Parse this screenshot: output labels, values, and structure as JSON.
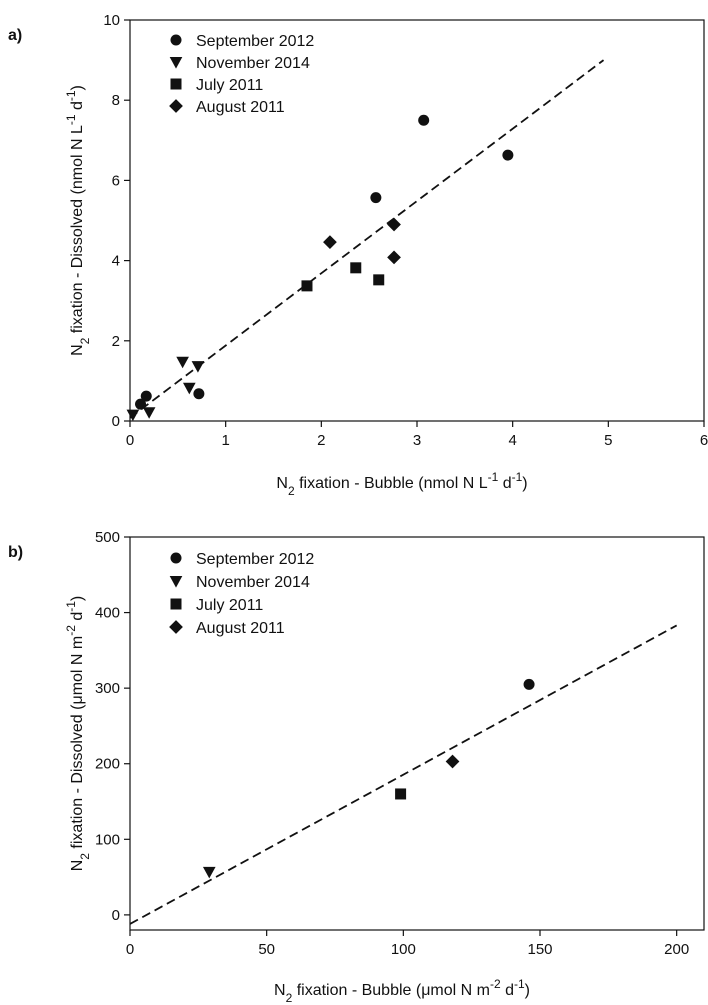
{
  "chart_data": [
    {
      "type": "scatter",
      "panel_label": "a)",
      "xlabel": "N2 fixation - Bubble (nmol N L-1 d-1)",
      "ylabel": "N2 fixation - Dissolved (nmol N L-1 d-1)",
      "xlabel_parts": {
        "pre": "N",
        "sub": "2",
        "mid": " fixation - Bubble (nmol N L",
        "sup1": "-1",
        "mid2": " d",
        "sup2": "-1",
        "post": ")"
      },
      "ylabel_parts": {
        "pre": "N",
        "sub": "2",
        "mid": " fixation - Dissolved (nmol N L",
        "sup1": "-1",
        "mid2": " d",
        "sup2": "-1",
        "post": ")"
      },
      "xlim": [
        0,
        6
      ],
      "ylim": [
        0,
        10
      ],
      "xticks": [
        0,
        1,
        2,
        3,
        4,
        5,
        6
      ],
      "yticks": [
        0,
        2,
        4,
        6,
        8,
        10
      ],
      "legend_position": "top-left",
      "grid": false,
      "series": [
        {
          "name": "September 2012",
          "marker": "circle",
          "x": [
            0.11,
            0.17,
            0.72,
            2.57,
            3.07,
            3.95
          ],
          "y": [
            0.42,
            0.62,
            0.68,
            5.57,
            7.5,
            6.63
          ]
        },
        {
          "name": "November 2014",
          "marker": "triangle-down",
          "x": [
            0.03,
            0.2,
            0.55,
            0.62,
            0.71
          ],
          "y": [
            0.16,
            0.22,
            1.48,
            0.83,
            1.37
          ]
        },
        {
          "name": "July 2011",
          "marker": "square",
          "x": [
            1.85,
            2.36,
            2.6
          ],
          "y": [
            3.37,
            3.82,
            3.52
          ]
        },
        {
          "name": "August 2011",
          "marker": "diamond",
          "x": [
            2.09,
            2.76,
            2.76
          ],
          "y": [
            4.46,
            4.9,
            4.08
          ]
        }
      ],
      "fit_line": {
        "style": "dashed",
        "x": [
          0,
          4.95
        ],
        "y": [
          0.08,
          9.0
        ]
      }
    },
    {
      "type": "scatter",
      "panel_label": "b)",
      "xlabel": "N2 fixation - Bubble (μmol N m-2 d-1)",
      "ylabel": "N2 fixation - Dissolved (μmol N m-2 d-1)",
      "xlabel_parts": {
        "pre": "N",
        "sub": "2",
        "mid": " fixation - Bubble (μmol N m",
        "sup1": "-2",
        "mid2": " d",
        "sup2": "-1",
        "post": ")"
      },
      "ylabel_parts": {
        "pre": "N",
        "sub": "2",
        "mid": " fixation - Dissolved (μmol N m",
        "sup1": "-2",
        "mid2": " d",
        "sup2": "-1",
        "post": ")"
      },
      "xlim": [
        0,
        210
      ],
      "ylim": [
        -20,
        500
      ],
      "xticks": [
        0,
        50,
        100,
        150,
        200
      ],
      "yticks": [
        0,
        100,
        200,
        300,
        400,
        500
      ],
      "legend_position": "top-left",
      "grid": false,
      "series": [
        {
          "name": "September 2012",
          "marker": "circle",
          "x": [
            146
          ],
          "y": [
            305
          ]
        },
        {
          "name": "November 2014",
          "marker": "triangle-down",
          "x": [
            29
          ],
          "y": [
            57
          ]
        },
        {
          "name": "July 2011",
          "marker": "square",
          "x": [
            99
          ],
          "y": [
            160
          ]
        },
        {
          "name": "August 2011",
          "marker": "diamond",
          "x": [
            118
          ],
          "y": [
            203
          ]
        }
      ],
      "fit_line": {
        "style": "dashed",
        "x": [
          0,
          200
        ],
        "y": [
          -12,
          383
        ]
      }
    }
  ]
}
